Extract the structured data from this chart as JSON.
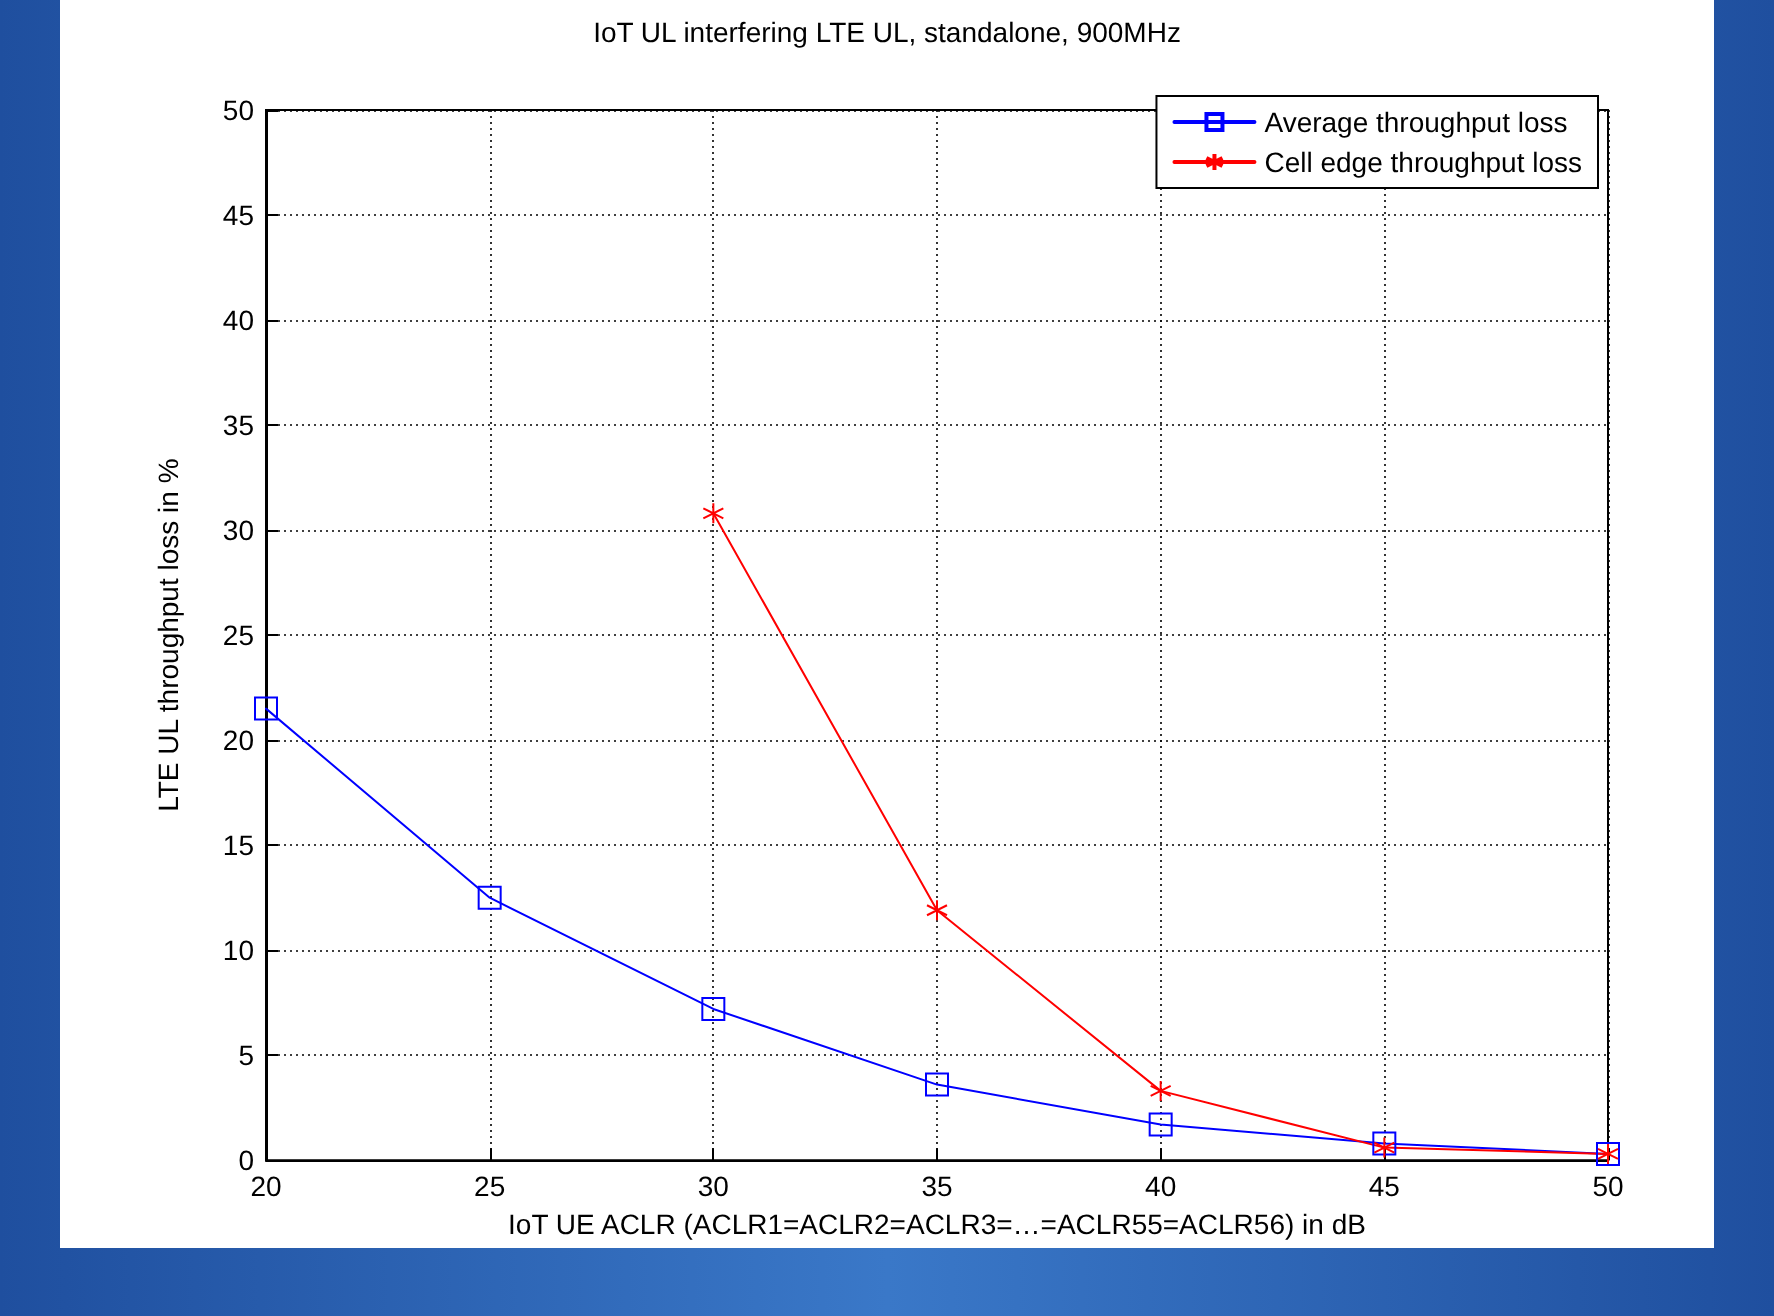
{
  "chart_data": {
    "type": "line",
    "title": "IoT UL interfering LTE UL, standalone, 900MHz",
    "xlabel": "IoT UE ACLR (ACLR1=ACLR2=ACLR3=…=ACLR55=ACLR56) in dB",
    "ylabel": "LTE UL throughput loss in %",
    "x": [
      20,
      25,
      30,
      35,
      40,
      45,
      50
    ],
    "series": [
      {
        "name": "Average throughput loss",
        "color": "#0000ff",
        "marker": "square",
        "values": [
          21.5,
          12.5,
          7.2,
          3.6,
          1.7,
          0.8,
          0.3
        ]
      },
      {
        "name": "Cell edge throughput loss",
        "color": "#ff0000",
        "marker": "cross",
        "values": [
          null,
          null,
          30.8,
          11.9,
          3.3,
          0.6,
          0.3
        ]
      }
    ],
    "xlim": [
      20,
      50
    ],
    "xticks": [
      20,
      25,
      30,
      35,
      40,
      45,
      50
    ],
    "ylim": [
      0,
      50
    ],
    "yticks": [
      0,
      5,
      10,
      15,
      20,
      25,
      30,
      35,
      40,
      45,
      50
    ],
    "grid": true,
    "legend": "top right",
    "line_style": "solid"
  }
}
